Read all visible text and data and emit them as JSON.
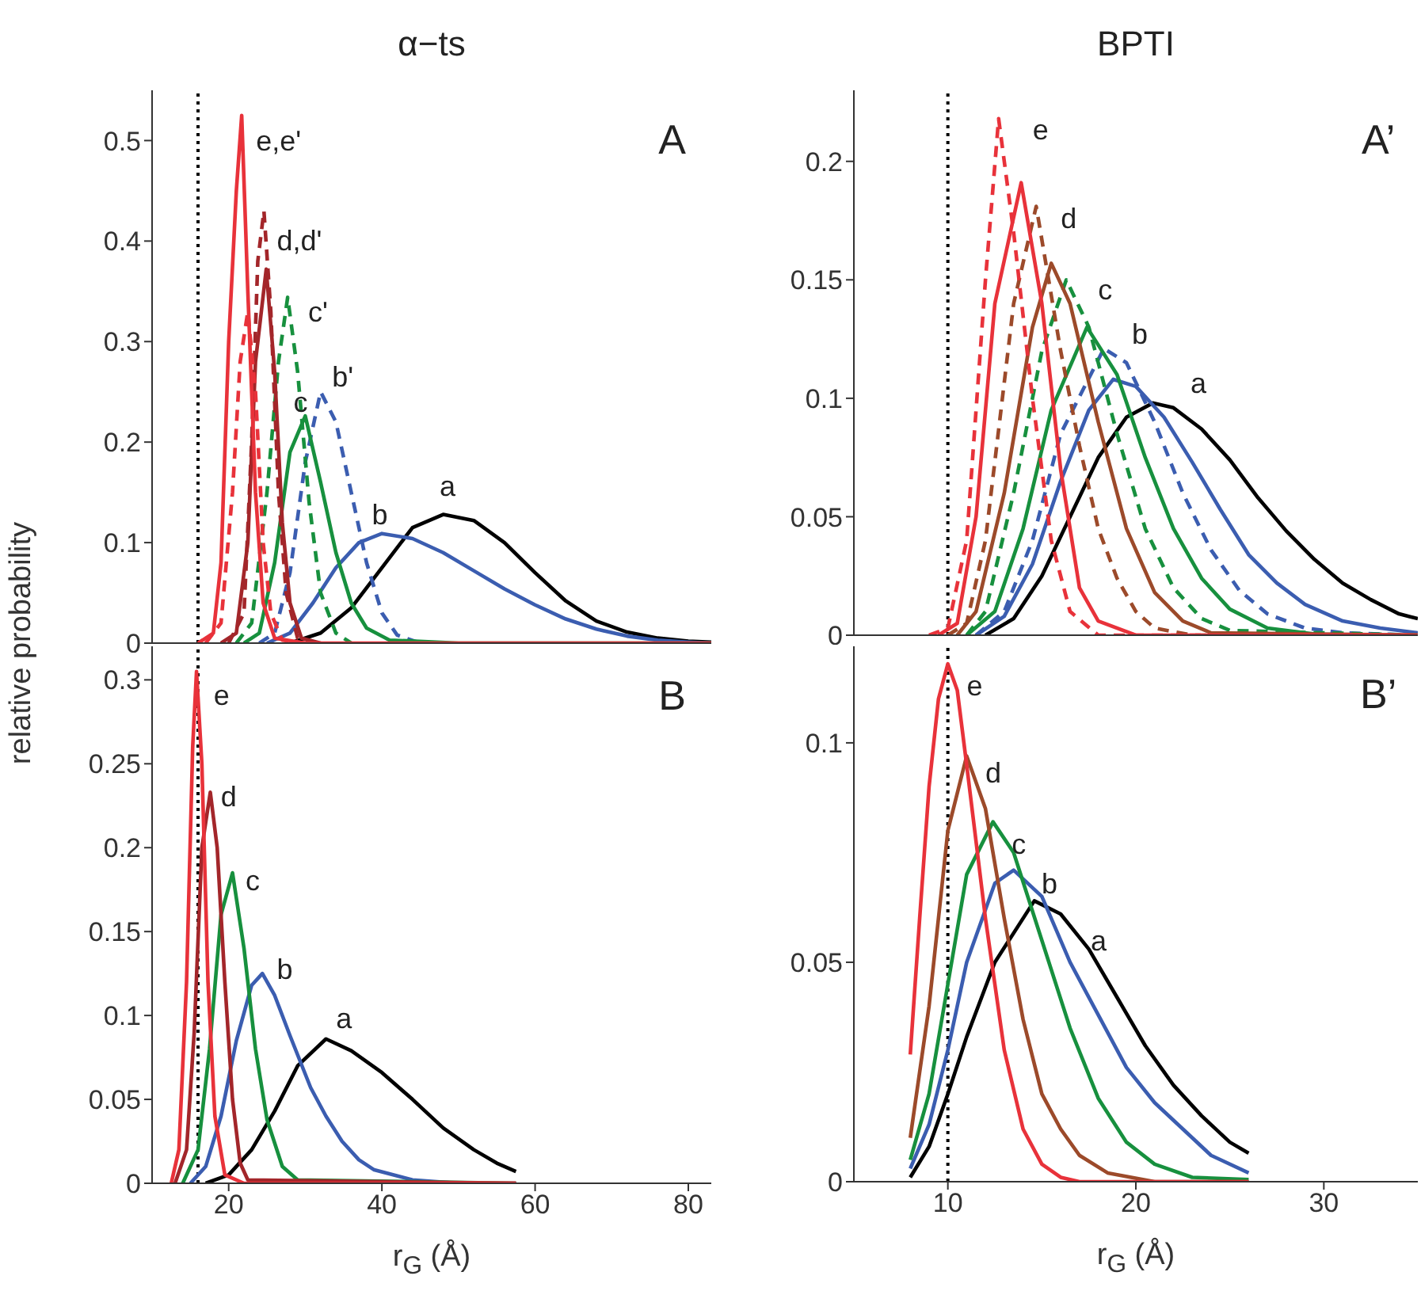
{
  "chart_data": [
    {
      "type": "line",
      "title": "α−ts",
      "ylabel": "relative probability",
      "xlim": [
        10,
        83
      ],
      "xticks": [
        20,
        40,
        60,
        80
      ],
      "ylim": [
        0,
        0.55
      ],
      "yticks": [
        0,
        0.1,
        0.2,
        0.3,
        0.4,
        0.5
      ],
      "tick_labels": "y",
      "ref_lines": [
        {
          "axis": "x",
          "value": 16,
          "color": "#000000",
          "line_style": "dotted"
        }
      ],
      "annotations": [
        "A",
        "e,e'",
        "d,d'",
        "c'",
        "b'",
        "c",
        "b",
        "a"
      ],
      "series": [
        {
          "color": "#000000",
          "line_style": "solid",
          "x": [
            28,
            32,
            36,
            40,
            44,
            48,
            52,
            56,
            60,
            64,
            68,
            72,
            76,
            80,
            83
          ],
          "values": [
            0,
            0.01,
            0.035,
            0.075,
            0.115,
            0.128,
            0.122,
            0.1,
            0.07,
            0.042,
            0.022,
            0.011,
            0.005,
            0.002,
            0.001
          ]
        },
        {
          "color": "#3b5db0",
          "line_style": "solid",
          "x": [
            25,
            28,
            31,
            34,
            37,
            40,
            44,
            48,
            52,
            56,
            60,
            64,
            68,
            72,
            76,
            80,
            83
          ],
          "values": [
            0,
            0.01,
            0.04,
            0.075,
            0.1,
            0.109,
            0.104,
            0.09,
            0.072,
            0.054,
            0.038,
            0.024,
            0.014,
            0.007,
            0.003,
            0.001,
            0
          ]
        },
        {
          "color": "#3b5db0",
          "line_style": "dashed",
          "x": [
            24,
            26,
            28,
            30,
            32,
            34,
            36,
            38,
            40,
            42,
            45
          ],
          "values": [
            0,
            0.01,
            0.07,
            0.18,
            0.25,
            0.22,
            0.15,
            0.08,
            0.03,
            0.008,
            0
          ]
        },
        {
          "color": "#17903e",
          "line_style": "solid",
          "x": [
            22,
            24,
            26,
            28,
            30,
            32,
            34,
            36,
            38,
            41,
            50,
            83
          ],
          "values": [
            0,
            0.01,
            0.08,
            0.19,
            0.226,
            0.16,
            0.09,
            0.04,
            0.015,
            0.003,
            0,
            0
          ]
        },
        {
          "color": "#17903e",
          "line_style": "dashed",
          "x": [
            21,
            23,
            25,
            26.5,
            27.7,
            29,
            30.5,
            32,
            34,
            36
          ],
          "values": [
            0,
            0.02,
            0.15,
            0.28,
            0.344,
            0.27,
            0.14,
            0.05,
            0.01,
            0
          ]
        },
        {
          "color": "#a3262a",
          "line_style": "solid",
          "x": [
            19,
            21,
            22.5,
            23.5,
            24.9,
            26,
            27,
            28,
            29.5,
            32
          ],
          "values": [
            0,
            0.01,
            0.1,
            0.28,
            0.372,
            0.27,
            0.12,
            0.04,
            0.005,
            0
          ]
        },
        {
          "color": "#a3262a",
          "line_style": "dashed",
          "x": [
            20,
            22,
            23,
            23.8,
            24.6,
            25.5,
            26.5,
            27.5,
            29,
            31
          ],
          "values": [
            0,
            0.03,
            0.2,
            0.38,
            0.43,
            0.33,
            0.15,
            0.05,
            0.005,
            0
          ]
        },
        {
          "color": "#e8323a",
          "line_style": "dashed",
          "x": [
            17,
            19,
            20.5,
            21.5,
            22.5,
            23.5,
            24.5,
            25.5,
            27,
            30
          ],
          "values": [
            0,
            0.02,
            0.15,
            0.28,
            0.33,
            0.25,
            0.1,
            0.03,
            0.003,
            0
          ]
        },
        {
          "color": "#e8323a",
          "line_style": "solid",
          "x": [
            16,
            18,
            19,
            20,
            21,
            21.7,
            22.5,
            23.5,
            24.5,
            26,
            30,
            83
          ],
          "values": [
            0,
            0.01,
            0.08,
            0.3,
            0.45,
            0.525,
            0.35,
            0.15,
            0.04,
            0.005,
            0,
            0
          ]
        }
      ]
    },
    {
      "type": "line",
      "xlabel": "r$_{G}$ (Å)",
      "xlim": [
        10,
        83
      ],
      "xticks": [
        20,
        40,
        60,
        80
      ],
      "ylim": [
        0,
        0.32
      ],
      "yticks": [
        0,
        0.05,
        0.1,
        0.15,
        0.2,
        0.25,
        0.3
      ],
      "ref_lines": [
        {
          "axis": "x",
          "value": 16,
          "color": "#000000",
          "line_style": "dotted"
        }
      ],
      "annotations": [
        "B",
        "e",
        "d",
        "c",
        "b",
        "a"
      ],
      "series": [
        {
          "color": "#000000",
          "line_style": "solid",
          "x": [
            17,
            20,
            23,
            26,
            29,
            32.7,
            36,
            40,
            44,
            48,
            52,
            55,
            57.5
          ],
          "values": [
            0,
            0.005,
            0.02,
            0.043,
            0.07,
            0.086,
            0.079,
            0.066,
            0.05,
            0.033,
            0.02,
            0.012,
            0.007
          ]
        },
        {
          "color": "#3b5db0",
          "line_style": "solid",
          "x": [
            15,
            17,
            19,
            21,
            23,
            24.4,
            26,
            28,
            30.7,
            32.7,
            34.8,
            37,
            39,
            44,
            50,
            57.5
          ],
          "values": [
            0,
            0.01,
            0.04,
            0.085,
            0.118,
            0.125,
            0.112,
            0.088,
            0.057,
            0.04,
            0.025,
            0.014,
            0.008,
            0.002,
            0,
            0
          ]
        },
        {
          "color": "#17903e",
          "line_style": "solid",
          "x": [
            14,
            16,
            17.5,
            19,
            20.5,
            22,
            23.5,
            25,
            27,
            29,
            57.5
          ],
          "values": [
            0,
            0.02,
            0.08,
            0.16,
            0.185,
            0.14,
            0.08,
            0.038,
            0.01,
            0.002,
            0
          ]
        },
        {
          "color": "#a3262a",
          "line_style": "solid",
          "x": [
            13,
            14.5,
            15.5,
            16.5,
            17.6,
            18.5,
            19.5,
            20.5,
            21.5,
            22.5,
            57.5
          ],
          "values": [
            0,
            0.02,
            0.09,
            0.2,
            0.233,
            0.2,
            0.12,
            0.05,
            0.012,
            0.002,
            0
          ]
        },
        {
          "color": "#e8323a",
          "line_style": "solid",
          "x": [
            12.5,
            13.5,
            14.5,
            15.3,
            15.8,
            16.5,
            17.3,
            18.2,
            19.5,
            22,
            57.5
          ],
          "values": [
            0,
            0.02,
            0.12,
            0.26,
            0.305,
            0.25,
            0.12,
            0.04,
            0.005,
            0,
            0
          ]
        }
      ]
    },
    {
      "type": "line",
      "title": "BPTI",
      "xlim": [
        5,
        35
      ],
      "xticks": [
        10,
        20,
        30
      ],
      "ylim": [
        0,
        0.23
      ],
      "yticks": [
        0,
        0.05,
        0.1,
        0.15,
        0.2
      ],
      "tick_labels": "y",
      "ref_lines": [
        {
          "axis": "x",
          "value": 10,
          "color": "#000000",
          "line_style": "dotted"
        }
      ],
      "annotations": [
        "A’",
        "e",
        "d",
        "c",
        "b",
        "a"
      ],
      "series": [
        {
          "color": "#000000",
          "line_style": "solid",
          "x": [
            12,
            13.5,
            15,
            16.5,
            18,
            19.5,
            20.9,
            22,
            23.5,
            25,
            26.5,
            28,
            29.5,
            31,
            32.5,
            34,
            35
          ],
          "values": [
            0,
            0.007,
            0.025,
            0.05,
            0.075,
            0.092,
            0.098,
            0.096,
            0.087,
            0.074,
            0.058,
            0.044,
            0.032,
            0.022,
            0.015,
            0.009,
            0.007
          ]
        },
        {
          "color": "#3b5db0",
          "line_style": "solid",
          "x": [
            11.5,
            13,
            14.5,
            16,
            17.5,
            18.8,
            20,
            21.5,
            23,
            24.5,
            26,
            27.5,
            29,
            31,
            33,
            35
          ],
          "values": [
            0,
            0.008,
            0.03,
            0.065,
            0.095,
            0.108,
            0.105,
            0.092,
            0.073,
            0.053,
            0.034,
            0.022,
            0.013,
            0.006,
            0.003,
            0.001
          ]
        },
        {
          "color": "#3b5db0",
          "line_style": "dashed",
          "x": [
            11.5,
            13,
            14.5,
            16,
            18.3,
            19.5,
            21,
            22.5,
            24,
            25.5,
            27,
            29,
            31,
            35
          ],
          "values": [
            0,
            0.01,
            0.04,
            0.085,
            0.121,
            0.115,
            0.09,
            0.06,
            0.036,
            0.019,
            0.009,
            0.003,
            0.001,
            0
          ]
        },
        {
          "color": "#17903e",
          "line_style": "solid",
          "x": [
            11,
            12.5,
            14,
            15.5,
            17.4,
            19,
            20.5,
            22,
            23.5,
            25,
            27,
            30,
            35
          ],
          "values": [
            0,
            0.01,
            0.045,
            0.095,
            0.13,
            0.11,
            0.075,
            0.045,
            0.024,
            0.011,
            0.003,
            0,
            0
          ]
        },
        {
          "color": "#17903e",
          "line_style": "dashed",
          "x": [
            11,
            12,
            13.5,
            15,
            16.3,
            17.5,
            19,
            20.5,
            22,
            23.5,
            25,
            35
          ],
          "values": [
            0,
            0.01,
            0.06,
            0.12,
            0.15,
            0.13,
            0.085,
            0.045,
            0.02,
            0.007,
            0.002,
            0
          ]
        },
        {
          "color": "#9c4a2a",
          "line_style": "solid",
          "x": [
            10.5,
            11.5,
            13,
            14.5,
            15.5,
            16.5,
            18,
            19.5,
            21,
            22.5,
            24,
            35
          ],
          "values": [
            0,
            0.01,
            0.06,
            0.13,
            0.157,
            0.14,
            0.09,
            0.045,
            0.018,
            0.006,
            0.001,
            0
          ]
        },
        {
          "color": "#9c4a2a",
          "line_style": "dashed",
          "x": [
            10,
            11,
            12,
            13.5,
            14.7,
            16,
            17,
            18,
            19,
            20,
            21,
            23,
            35
          ],
          "values": [
            0,
            0.005,
            0.04,
            0.14,
            0.181,
            0.12,
            0.08,
            0.045,
            0.024,
            0.01,
            0.003,
            0,
            0
          ]
        },
        {
          "color": "#e8323a",
          "line_style": "solid",
          "x": [
            9.5,
            10.5,
            11.5,
            12.5,
            13.9,
            15,
            16,
            17,
            18,
            20,
            35
          ],
          "values": [
            0,
            0.005,
            0.05,
            0.14,
            0.191,
            0.14,
            0.07,
            0.02,
            0.006,
            0,
            0
          ]
        },
        {
          "color": "#e8323a",
          "line_style": "dashed",
          "x": [
            9,
            10,
            11,
            12,
            12.7,
            13.5,
            14.5,
            15.5,
            16.5,
            18,
            35
          ],
          "values": [
            0,
            0.003,
            0.04,
            0.15,
            0.218,
            0.17,
            0.1,
            0.04,
            0.01,
            0,
            0
          ]
        }
      ]
    },
    {
      "type": "line",
      "xlabel": "r$_{G}$ (Å)",
      "xlim": [
        5,
        35
      ],
      "xticks": [
        10,
        20,
        30
      ],
      "ylim": [
        0,
        0.122
      ],
      "yticks": [
        0,
        0.05,
        0.1
      ],
      "ref_lines": [
        {
          "axis": "x",
          "value": 10,
          "color": "#000000",
          "line_style": "dotted"
        }
      ],
      "annotations": [
        "B’",
        "e",
        "d",
        "c",
        "b",
        "a"
      ],
      "series": [
        {
          "color": "#000000",
          "line_style": "solid",
          "x": [
            8,
            9,
            10,
            11,
            12.5,
            14.6,
            16,
            17.5,
            19,
            20.5,
            22,
            23.5,
            25,
            26
          ],
          "values": [
            0.001,
            0.008,
            0.02,
            0.033,
            0.05,
            0.064,
            0.061,
            0.053,
            0.042,
            0.031,
            0.022,
            0.015,
            0.009,
            0.0065
          ]
        },
        {
          "color": "#3b5db0",
          "line_style": "solid",
          "x": [
            8,
            9,
            10,
            11,
            12.5,
            13.5,
            15,
            16.5,
            18,
            19.5,
            21,
            22.5,
            24,
            26
          ],
          "values": [
            0.003,
            0.013,
            0.03,
            0.05,
            0.068,
            0.071,
            0.065,
            0.05,
            0.038,
            0.026,
            0.018,
            0.012,
            0.006,
            0.002
          ]
        },
        {
          "color": "#17903e",
          "line_style": "solid",
          "x": [
            8,
            9,
            10,
            11,
            12.4,
            13.5,
            15,
            16.5,
            18,
            19.5,
            21,
            23,
            26
          ],
          "values": [
            0.005,
            0.02,
            0.045,
            0.07,
            0.082,
            0.075,
            0.055,
            0.035,
            0.019,
            0.009,
            0.004,
            0.001,
            0.0005
          ]
        },
        {
          "color": "#9c4a2a",
          "line_style": "solid",
          "x": [
            8,
            9,
            10,
            11,
            12,
            13,
            14,
            15,
            16,
            17,
            18.5,
            21,
            26
          ],
          "values": [
            0.01,
            0.04,
            0.08,
            0.097,
            0.085,
            0.06,
            0.037,
            0.02,
            0.012,
            0.006,
            0.002,
            0,
            0
          ]
        },
        {
          "color": "#e8323a",
          "line_style": "solid",
          "x": [
            8,
            8.5,
            9,
            9.5,
            10,
            10.5,
            11,
            12,
            13,
            14,
            15,
            16,
            17,
            26
          ],
          "values": [
            0.029,
            0.06,
            0.09,
            0.11,
            0.118,
            0.112,
            0.095,
            0.06,
            0.03,
            0.012,
            0.004,
            0.001,
            0,
            0
          ]
        }
      ]
    }
  ]
}
